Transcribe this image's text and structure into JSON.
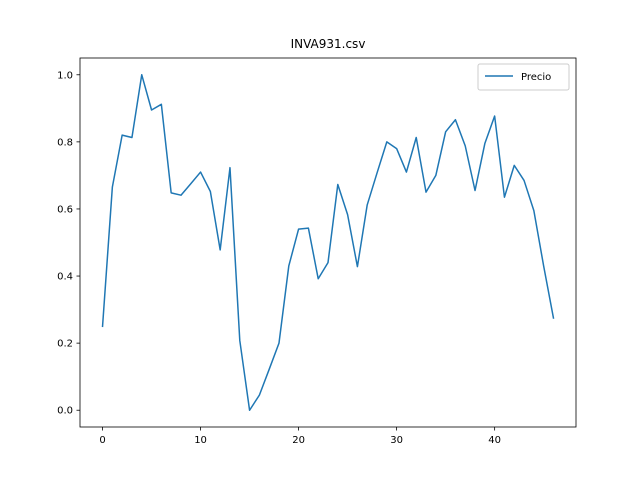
{
  "chart_data": {
    "type": "line",
    "title": "INVA931.csv",
    "xlabel": "",
    "ylabel": "",
    "xlim": [
      -2.3,
      48.3
    ],
    "ylim": [
      -0.05,
      1.05
    ],
    "xticks": [
      0,
      10,
      20,
      30,
      40
    ],
    "xtick_labels": [
      "0",
      "10",
      "20",
      "30",
      "40"
    ],
    "yticks": [
      0.0,
      0.2,
      0.4,
      0.6,
      0.8,
      1.0
    ],
    "ytick_labels": [
      "0.0",
      "0.2",
      "0.4",
      "0.6",
      "0.8",
      "1.0"
    ],
    "grid": false,
    "legend_position": "top-right",
    "series": [
      {
        "name": "Precio",
        "color": "#1f77b4",
        "x": [
          0,
          1,
          2,
          3,
          4,
          5,
          6,
          7,
          8,
          9,
          10,
          11,
          12,
          13,
          14,
          15,
          16,
          17,
          18,
          19,
          20,
          21,
          22,
          23,
          24,
          25,
          26,
          27,
          28,
          29,
          30,
          31,
          32,
          33,
          34,
          35,
          36,
          37,
          38,
          39,
          40,
          41,
          42,
          43,
          44,
          45,
          46
        ],
        "y": [
          0.25,
          0.665,
          0.82,
          0.813,
          1.0,
          0.895,
          0.912,
          0.648,
          0.641,
          0.675,
          0.71,
          0.652,
          0.478,
          0.723,
          0.208,
          0.0,
          0.045,
          0.122,
          0.2,
          0.43,
          0.54,
          0.543,
          0.392,
          0.44,
          0.673,
          0.583,
          0.428,
          0.612,
          0.707,
          0.8,
          0.78,
          0.71,
          0.813,
          0.65,
          0.7,
          0.83,
          0.866,
          0.788,
          0.655,
          0.795,
          0.877,
          0.635,
          0.73,
          0.685,
          0.595,
          0.43,
          0.275
        ]
      }
    ]
  }
}
